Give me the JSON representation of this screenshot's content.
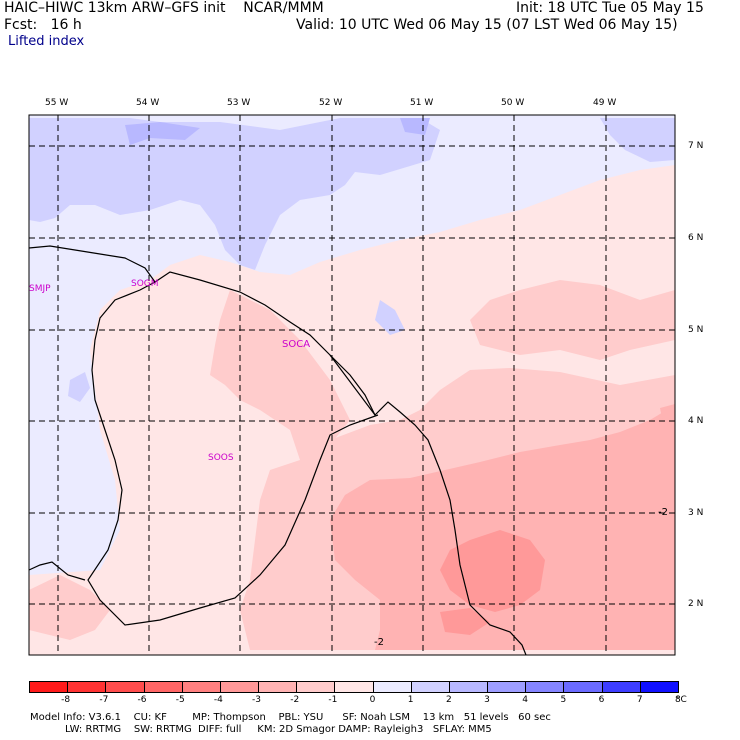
{
  "header": {
    "title": "HAIC–HIWC 13km ARW–GFS init    NCAR/MMM",
    "fcst": "Fcst:   16 h",
    "field": "Lifted index",
    "init": "Init: 18 UTC Tue 05 May 15",
    "valid": "Valid: 10 UTC Wed 06 May 15 (07 LST Wed 06 May 15)"
  },
  "map": {
    "lon_labels": [
      "55 W",
      "54 W",
      "53 W",
      "52 W",
      "51 W",
      "50 W",
      "49 W"
    ],
    "lat_labels": [
      "7 N",
      "6 N",
      "5 N",
      "4 N",
      "3 N",
      "2 N"
    ],
    "stations": [
      "SMJP",
      "SOGM",
      "SOCA",
      "SOOS"
    ],
    "contour_labels": [
      "-2",
      "-2"
    ]
  },
  "colorbar": {
    "ticks": [
      "-8",
      "-7",
      "-6",
      "-5",
      "-4",
      "-3",
      "-2",
      "-1",
      "0",
      "1",
      "2",
      "3",
      "4",
      "5",
      "6",
      "7",
      "8"
    ],
    "unit": "°C",
    "colors": [
      "#ff1a1a",
      "#ff3333",
      "#ff4d4d",
      "#ff6666",
      "#ff8080",
      "#ff9999",
      "#ffb3b3",
      "#ffcccc",
      "#ffe6e6",
      "#ebebff",
      "#d1d1ff",
      "#b8b8ff",
      "#9e9eff",
      "#8585ff",
      "#6b6bff",
      "#3d3dff",
      "#1010ff"
    ]
  },
  "footer": {
    "line1": "Model Info: V3.6.1    CU: KF        MP: Thompson    PBL: YSU      SF: Noah LSM    13 km   51 levels   60 sec",
    "line2": "           LW: RRTMG    SW: RRTMG  DIFF: full     KM: 2D Smagor DAMP: Rayleigh3   SFLAY: MM5"
  }
}
